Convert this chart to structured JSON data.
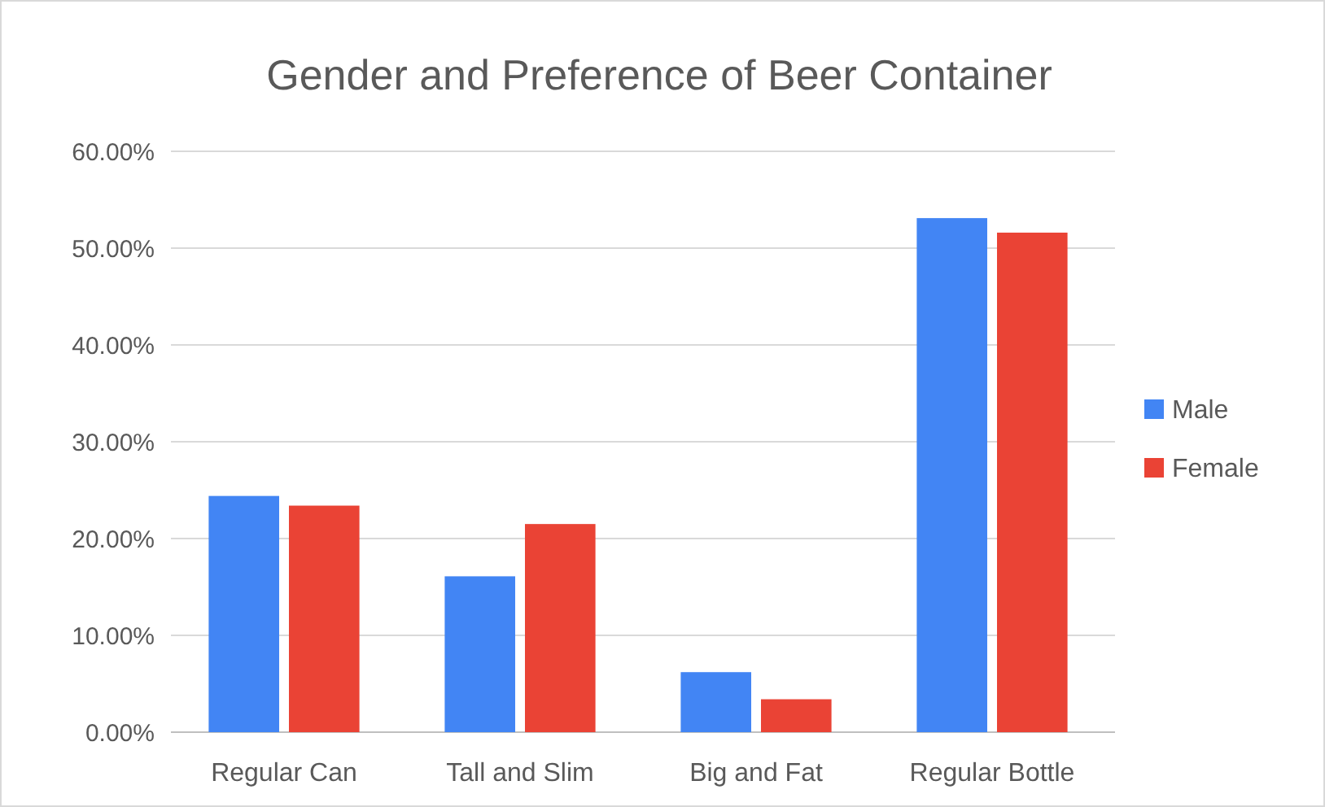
{
  "chart_data": {
    "type": "bar",
    "title": "Gender and  Preference of Beer Container",
    "categories": [
      "Regular Can",
      "Tall and Slim",
      "Big and Fat",
      "Regular Bottle"
    ],
    "series": [
      {
        "name": "Male",
        "color": "#4285f4",
        "values": [
          24.4,
          16.1,
          6.2,
          53.1
        ]
      },
      {
        "name": "Female",
        "color": "#ea4335",
        "values": [
          23.4,
          21.5,
          3.4,
          51.6
        ]
      }
    ],
    "ylim": [
      0,
      60
    ],
    "yticks": [
      {
        "value": 0,
        "label": "0.00%"
      },
      {
        "value": 10,
        "label": "10.00%"
      },
      {
        "value": 20,
        "label": "20.00%"
      },
      {
        "value": 30,
        "label": "30.00%"
      },
      {
        "value": 40,
        "label": "40.00%"
      },
      {
        "value": 50,
        "label": "50.00%"
      },
      {
        "value": 60,
        "label": "60.00%"
      }
    ],
    "grid": "y",
    "legend": "right"
  }
}
